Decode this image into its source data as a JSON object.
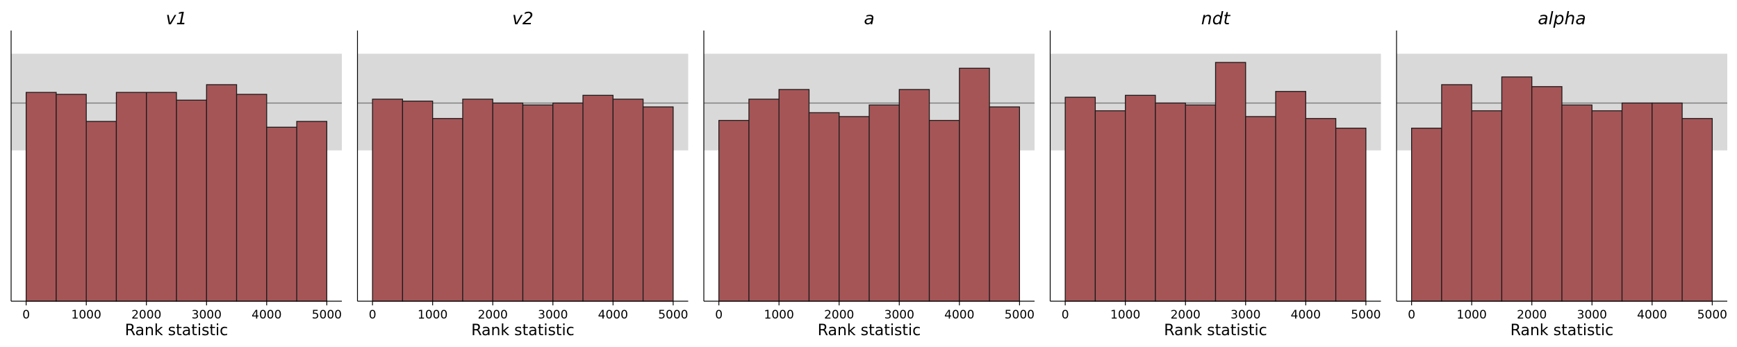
{
  "figure": {
    "background": "#ffffff"
  },
  "style": {
    "bar_fill": "#a65557",
    "bar_edge": "#1a1a1a",
    "band_fill": "#d9d9d9",
    "expected_line": "#808080",
    "axis_color": "#000000"
  },
  "chart_data": [
    {
      "type": "bar",
      "title": "v1",
      "xlabel": "Rank statistic",
      "ylabel": "",
      "xlim": [
        -250,
        5250
      ],
      "ylim": [
        0,
        28
      ],
      "xticks": [
        0,
        1000,
        2000,
        3000,
        4000,
        5000
      ],
      "bin_edges": [
        0,
        500,
        1000,
        1500,
        2000,
        2500,
        3000,
        3500,
        4000,
        4500,
        5000
      ],
      "values": [
        21.6,
        21.4,
        18.6,
        21.6,
        21.6,
        20.8,
        22.4,
        21.4,
        18.0,
        18.6
      ],
      "expected": 20.5,
      "band": [
        15.6,
        25.6
      ],
      "grid": false,
      "y_axis_visible": false
    },
    {
      "type": "bar",
      "title": "v2",
      "xlabel": "Rank statistic",
      "ylabel": "",
      "xlim": [
        -250,
        5250
      ],
      "ylim": [
        0,
        28
      ],
      "xticks": [
        0,
        1000,
        2000,
        3000,
        4000,
        5000
      ],
      "bin_edges": [
        0,
        500,
        1000,
        1500,
        2000,
        2500,
        3000,
        3500,
        4000,
        4500,
        5000
      ],
      "values": [
        20.9,
        20.7,
        18.9,
        20.9,
        20.5,
        20.3,
        20.5,
        21.3,
        20.9,
        20.1
      ],
      "expected": 20.5,
      "band": [
        15.6,
        25.6
      ],
      "grid": false,
      "y_axis_visible": false
    },
    {
      "type": "bar",
      "title": "a",
      "xlabel": "Rank statistic",
      "ylabel": "",
      "xlim": [
        -250,
        5250
      ],
      "ylim": [
        0,
        28
      ],
      "xticks": [
        0,
        1000,
        2000,
        3000,
        4000,
        5000
      ],
      "bin_edges": [
        0,
        500,
        1000,
        1500,
        2000,
        2500,
        3000,
        3500,
        4000,
        4500,
        5000
      ],
      "values": [
        18.7,
        20.9,
        21.9,
        19.5,
        19.1,
        20.3,
        21.9,
        18.7,
        24.1,
        20.1
      ],
      "expected": 20.5,
      "band": [
        15.6,
        25.6
      ],
      "grid": false,
      "y_axis_visible": false
    },
    {
      "type": "bar",
      "title": "ndt",
      "xlabel": "Rank statistic",
      "ylabel": "",
      "xlim": [
        -250,
        5250
      ],
      "ylim": [
        0,
        28
      ],
      "xticks": [
        0,
        1000,
        2000,
        3000,
        4000,
        5000
      ],
      "bin_edges": [
        0,
        500,
        1000,
        1500,
        2000,
        2500,
        3000,
        3500,
        4000,
        4500,
        5000
      ],
      "values": [
        21.1,
        19.7,
        21.3,
        20.5,
        20.3,
        24.7,
        19.1,
        21.7,
        18.9,
        17.9
      ],
      "expected": 20.5,
      "band": [
        15.6,
        25.6
      ],
      "grid": false,
      "y_axis_visible": false
    },
    {
      "type": "bar",
      "title": "alpha",
      "xlabel": "Rank statistic",
      "ylabel": "",
      "xlim": [
        -250,
        5250
      ],
      "ylim": [
        0,
        28
      ],
      "xticks": [
        0,
        1000,
        2000,
        3000,
        4000,
        5000
      ],
      "bin_edges": [
        0,
        500,
        1000,
        1500,
        2000,
        2500,
        3000,
        3500,
        4000,
        4500,
        5000
      ],
      "values": [
        17.9,
        22.4,
        19.7,
        23.2,
        22.2,
        20.3,
        19.7,
        20.5,
        20.5,
        18.9
      ],
      "expected": 20.5,
      "band": [
        15.6,
        25.6
      ],
      "grid": false,
      "y_axis_visible": false
    }
  ]
}
